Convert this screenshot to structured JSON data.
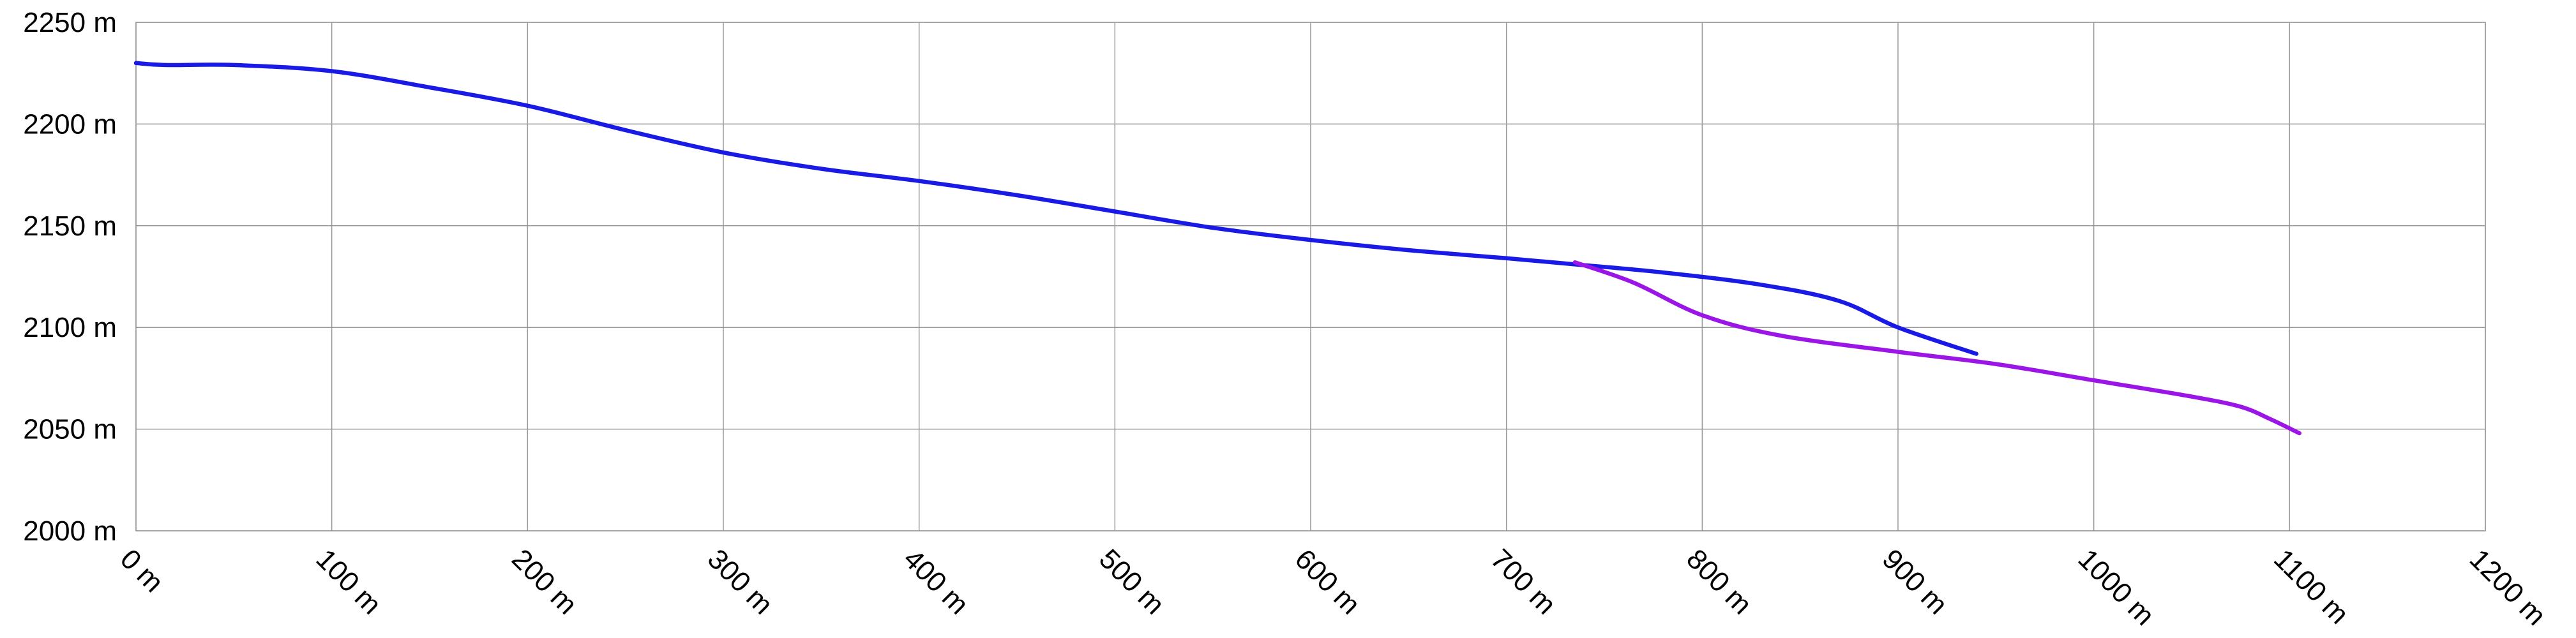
{
  "chart_data": {
    "type": "line",
    "title": "",
    "xlabel": "",
    "ylabel": "",
    "xlim": [
      0,
      1200
    ],
    "ylim": [
      2000,
      2250
    ],
    "x_ticks": [
      0,
      100,
      200,
      300,
      400,
      500,
      600,
      700,
      800,
      900,
      1000,
      1100,
      1200
    ],
    "x_tick_labels": [
      "0 m",
      "100 m",
      "200 m",
      "300 m",
      "400 m",
      "500 m",
      "600 m",
      "700 m",
      "800 m",
      "900 m",
      "1000 m",
      "1100 m",
      "1200 m"
    ],
    "y_ticks": [
      2000,
      2050,
      2100,
      2150,
      2200,
      2250
    ],
    "y_tick_labels": [
      "2000 m",
      "2050 m",
      "2100 m",
      "2150 m",
      "2200 m",
      "2250 m"
    ],
    "grid": true,
    "legend": "none",
    "series": [
      {
        "color": "#1a1ae6",
        "x": [
          0,
          15,
          50,
          100,
          150,
          200,
          250,
          300,
          350,
          400,
          450,
          500,
          550,
          600,
          650,
          700,
          735,
          780,
          830,
          870,
          900,
          940
        ],
        "y": [
          2230,
          2229,
          2229,
          2226,
          2218,
          2209,
          2197,
          2186,
          2178,
          2172,
          2165,
          2157,
          2149,
          2143,
          2138,
          2134,
          2131,
          2127,
          2121,
          2113,
          2100,
          2087
        ]
      },
      {
        "color": "#9b16e6",
        "x": [
          735,
          765,
          800,
          840,
          900,
          950,
          1000,
          1050,
          1075,
          1090,
          1105
        ],
        "y": [
          2132,
          2122,
          2106,
          2096,
          2088,
          2082,
          2074,
          2066,
          2061,
          2055,
          2048
        ]
      }
    ]
  }
}
